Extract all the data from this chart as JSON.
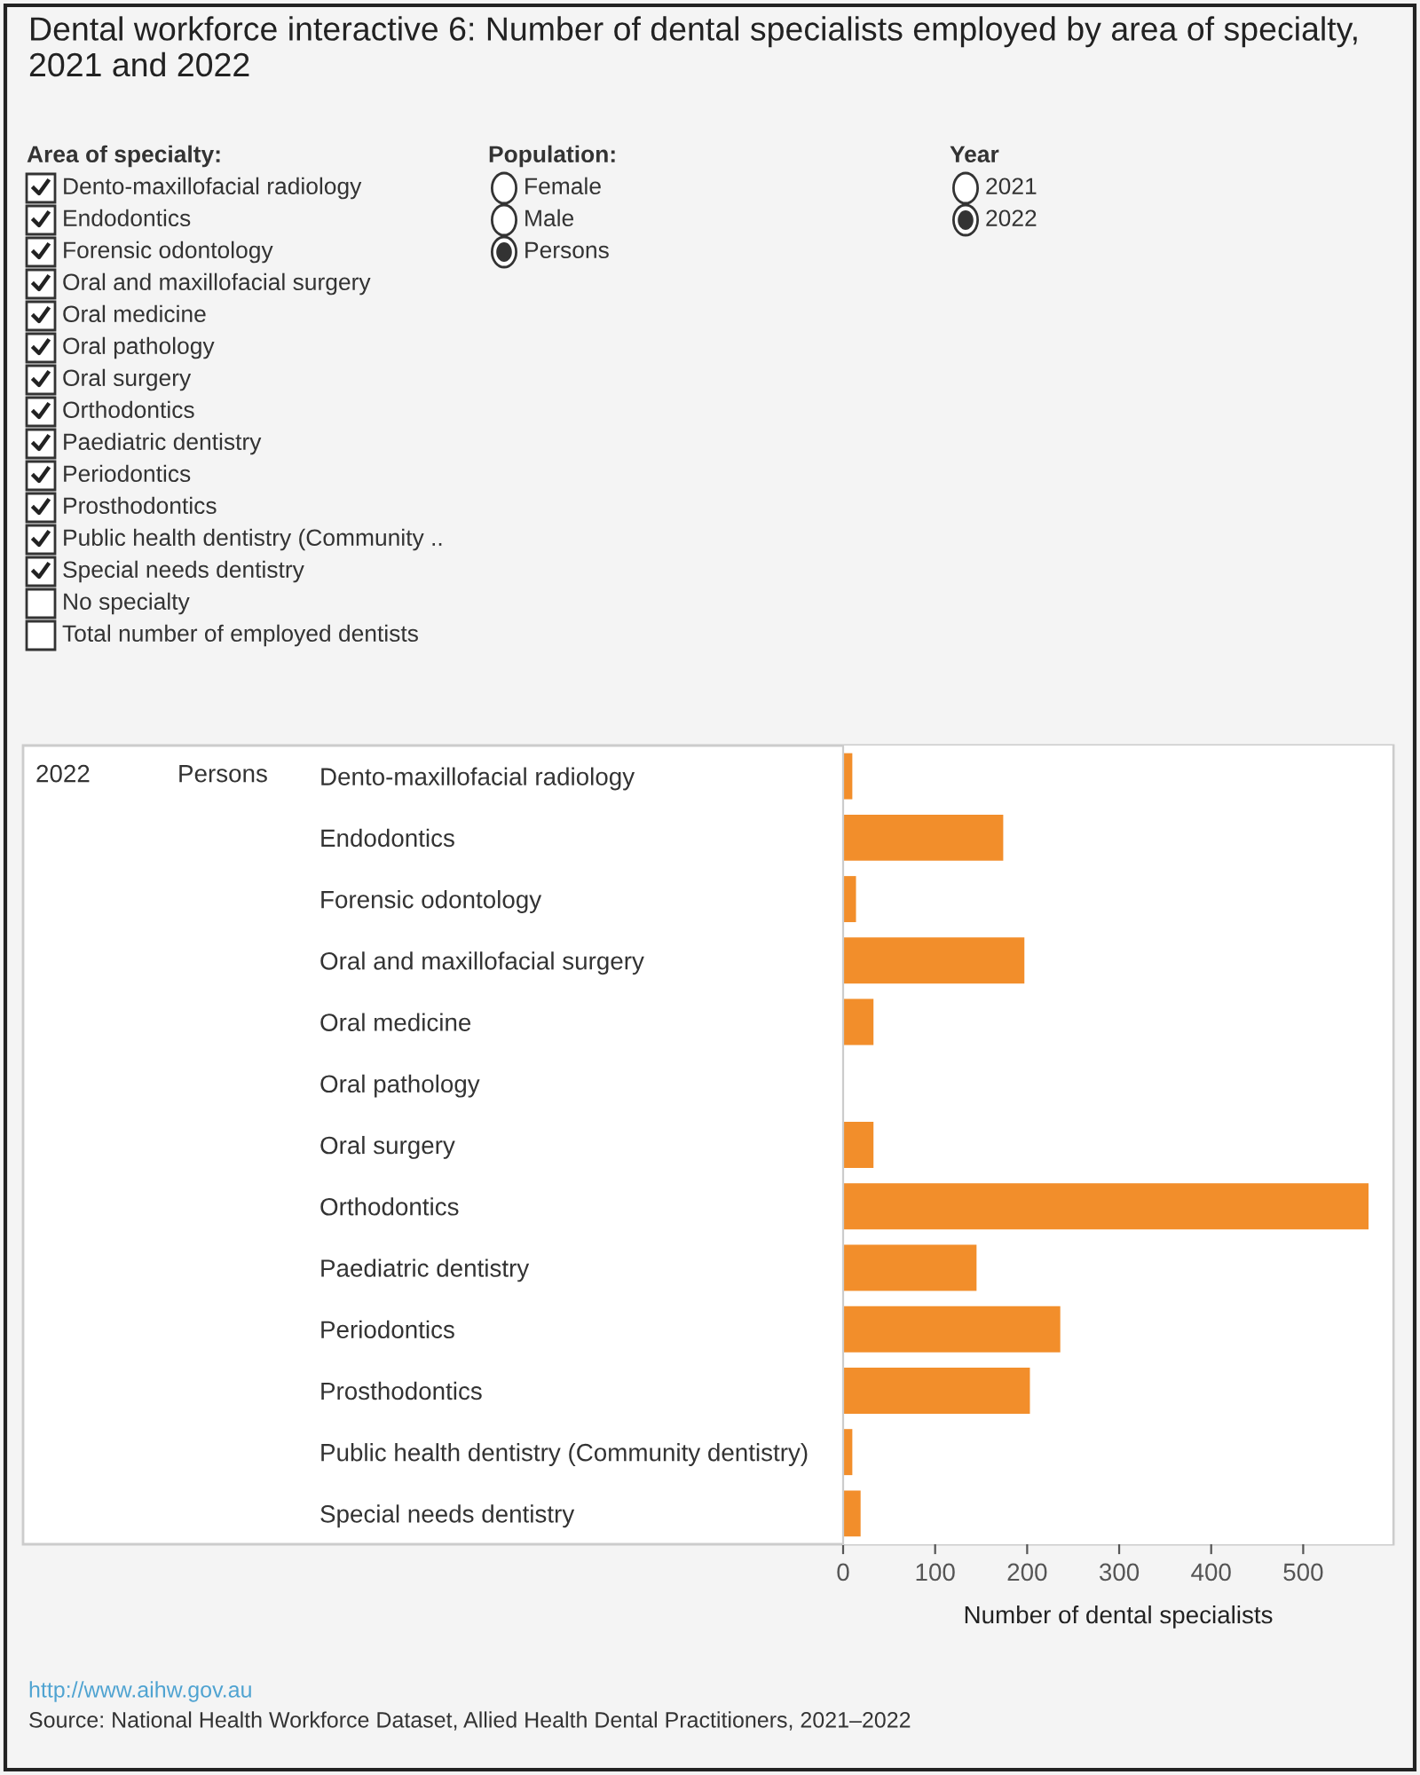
{
  "chart_data": {
    "type": "bar",
    "orientation": "horizontal",
    "title": "Dental workforce interactive 6: Number of dental specialists employed by area of specialty, 2021 and 2022",
    "categories": [
      "Dento-maxillofacial radiology",
      "Endodontics",
      "Forensic odontology",
      "Oral and maxillofacial surgery",
      "Oral medicine",
      "Oral pathology",
      "Oral surgery",
      "Orthodontics",
      "Paediatric dentistry",
      "Periodontics",
      "Prosthodontics",
      "Public health dentistry (Community dentistry)",
      "Special needs dentistry"
    ],
    "values": [
      10,
      174,
      14,
      197,
      33,
      null,
      33,
      571,
      145,
      236,
      203,
      10,
      19
    ],
    "color": "#f28e2b",
    "xlim": [
      0,
      598
    ],
    "xticks": [
      0,
      100,
      200,
      300,
      400,
      500
    ],
    "xlabel": "Number of dental specialists",
    "grid": false,
    "legend": false,
    "annotations": [
      "Area of specialty:",
      "Dento-maxillofacial radiology",
      "Endodontics",
      "Forensic odontology",
      "Oral and maxillofacial surgery",
      "Oral medicine",
      "Oral pathology",
      "Oral surgery",
      "Orthodontics",
      "Paediatric dentistry",
      "Periodontics",
      "Prosthodontics",
      "Public health dentistry (Community ..",
      "Special needs dentistry",
      "No specialty",
      "Total number of employed dentists",
      "Population:",
      "Female",
      "Male",
      "Persons",
      "Year",
      "2021",
      "2022",
      "2022",
      "Persons",
      "http://www.aihw.gov.au",
      "Source: National Health Workforce Dataset, Allied Health Dental Practitioners, 2021–2022"
    ]
  }
}
